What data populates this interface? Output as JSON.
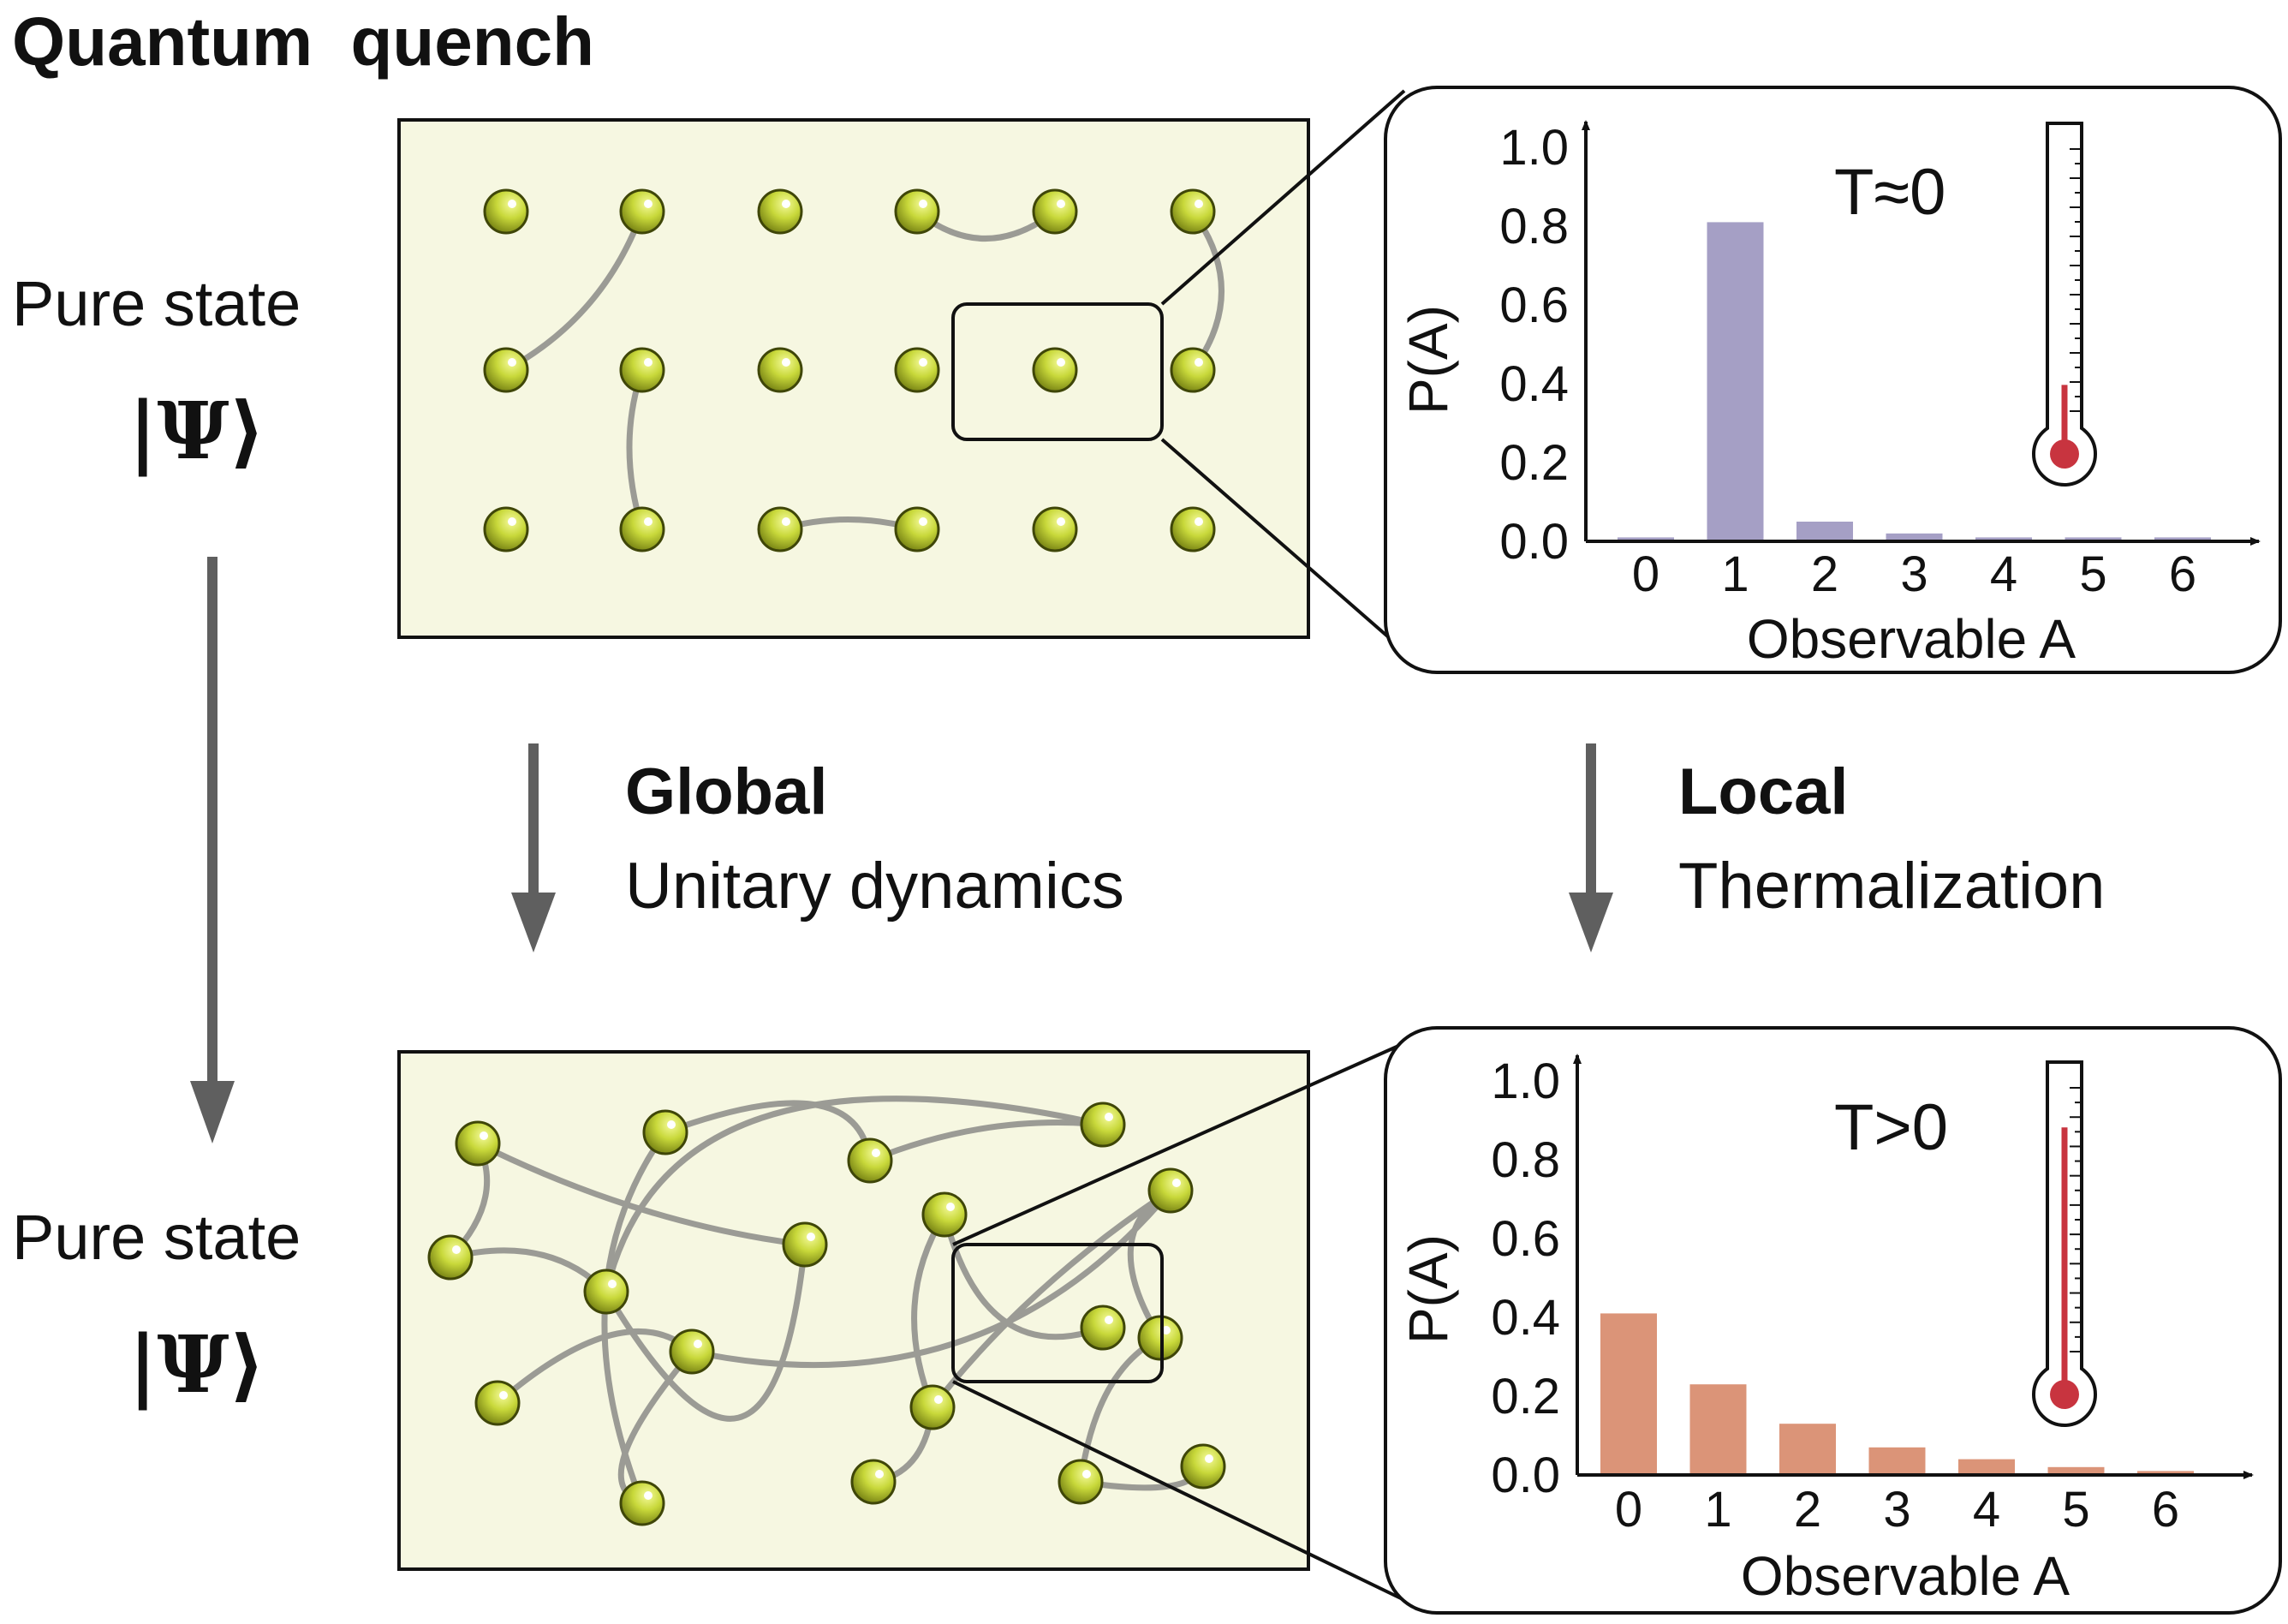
{
  "title": "Quantum  quench",
  "left": {
    "top_label": "Pure state",
    "top_psi": "|Ψ⟩",
    "bottom_label": "Pure state",
    "bottom_psi": "|Ψ⟩"
  },
  "middle": {
    "global_title": "Global",
    "global_text": "Unitary dynamics",
    "local_title": "Local",
    "local_text": "Thermalization"
  },
  "colors": {
    "panel_background": "#f6f7e1",
    "atom": "#b5c928",
    "link": "#9b9b95",
    "bar_initial": "#a59fc5",
    "bar_thermal": "#db9478",
    "thermometer": "#c8343f",
    "arrow": "#5f5f5f"
  },
  "icons": [
    "atom-icon",
    "thermometer-icon",
    "down-arrow-icon"
  ],
  "chart_data": [
    {
      "type": "bar",
      "categories": [
        "0",
        "1",
        "2",
        "3",
        "4",
        "5",
        "6"
      ],
      "values": [
        0.01,
        0.81,
        0.05,
        0.02,
        0.01,
        0.01,
        0.01
      ],
      "ylim": [
        0,
        1.0
      ],
      "yticks": [
        "0.0",
        "0.2",
        "0.4",
        "0.6",
        "0.8",
        "1.0"
      ],
      "ylabel": "P(A)",
      "xlabel": "Observable A",
      "annotation": "T≈0",
      "thermometer_level": 0.1,
      "color": "#a59fc5"
    },
    {
      "type": "bar",
      "categories": [
        "0",
        "1",
        "2",
        "3",
        "4",
        "5",
        "6"
      ],
      "values": [
        0.41,
        0.23,
        0.13,
        0.07,
        0.04,
        0.02,
        0.01
      ],
      "ylim": [
        0,
        1.0
      ],
      "yticks": [
        "0.0",
        "0.2",
        "0.4",
        "0.6",
        "0.8",
        "1.0"
      ],
      "ylabel": "P(A)",
      "xlabel": "Observable A",
      "annotation": "T>0",
      "thermometer_level": 0.85,
      "color": "#db9478"
    }
  ]
}
